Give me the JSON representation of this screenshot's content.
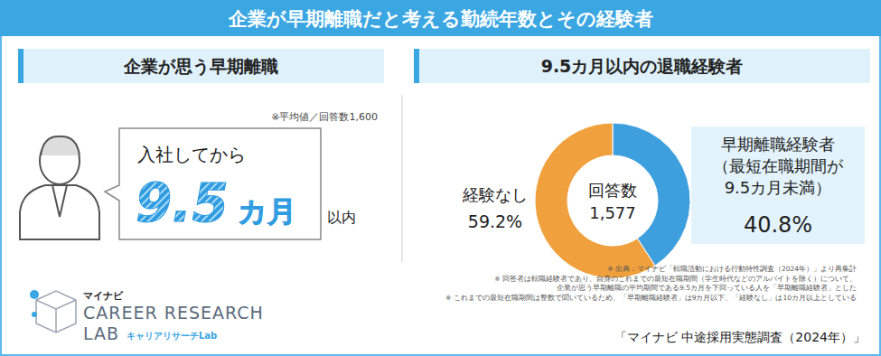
{
  "header": {
    "title": "企業が早期離職だと考える勤続年数とその経験者"
  },
  "left_panel": {
    "heading": "企業が思う早期離職",
    "note": "※平均値／回答数1,600",
    "lead": "入社してから",
    "value": 9.5,
    "unit": "カ月",
    "suffix": "以内"
  },
  "logo": {
    "brand": "マイナビ",
    "line1": "CAREER RESEARCH",
    "line2": "LAB",
    "sub": "キャリアリサーチLab"
  },
  "chart_data": {
    "type": "donut",
    "title": "9.5カ月以内の退職経験者",
    "categories": [
      "早期離職経験者\n（最短在職期間が\n9.5カ月未満）",
      "経験なし"
    ],
    "values": [
      40.8,
      59.2
    ],
    "value_labels": [
      "40.8%",
      "59.2%"
    ],
    "colors": [
      "#3d9fdd",
      "#f0a03c"
    ],
    "data_labels": true,
    "annotations": [
      "回答数",
      "1,577"
    ]
  },
  "notes": [
    "※ 出典：マイナビ「転職活動における行動特性調査（2024年）」より再集計",
    "※ 回答者は転職経験者であり、自身のこれまでの最短在職期間（学生時代などのアルバイトを除く）について、",
    "企業が思う早期離職の平均期間である9.5カ月を下回っている人を「早期離職経験者」とした",
    "※ これまでの最短在職期間は整数で聞いているため、「早期離職経験者」は9カ月以下、「経験なし」は10カ月以上としている"
  ],
  "source": "「マイナビ 中途採用実態調査（2024年）」"
}
